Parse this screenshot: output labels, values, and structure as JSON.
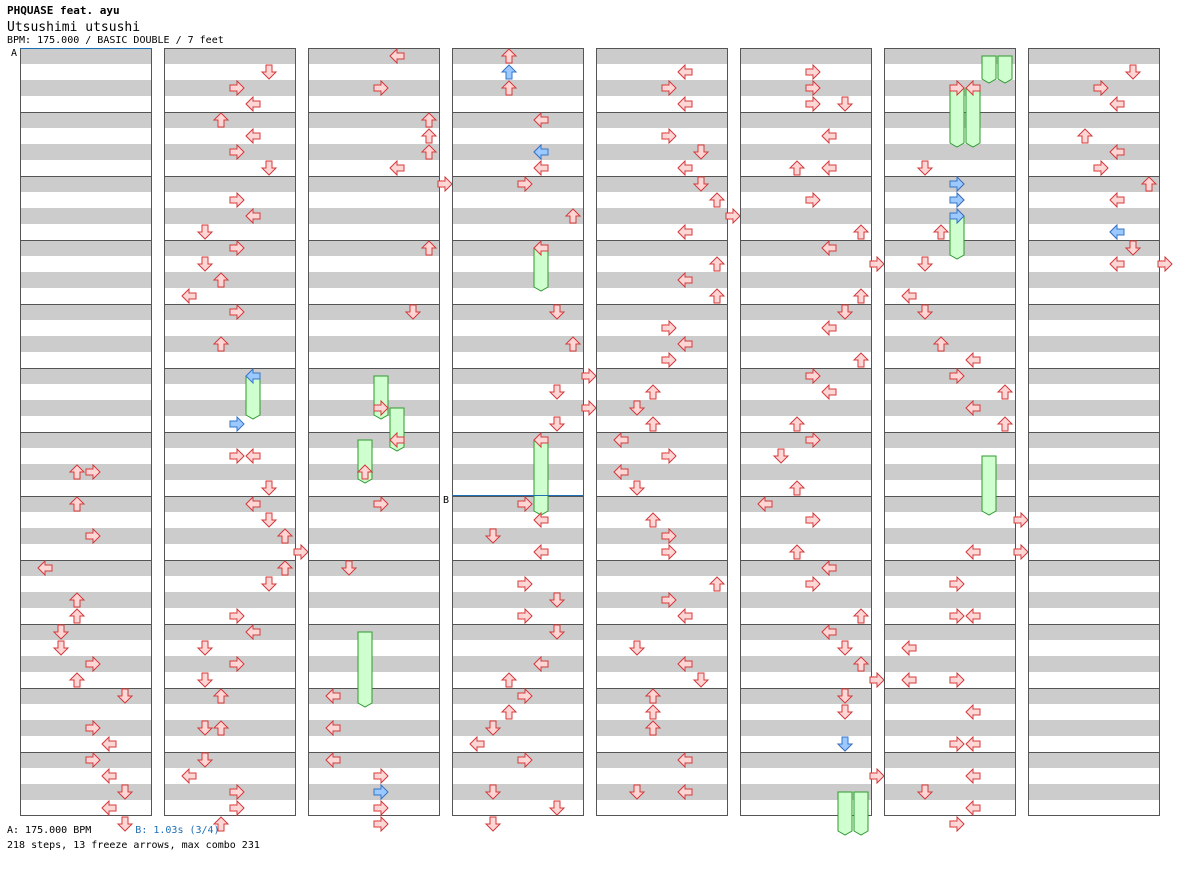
{
  "header": {
    "artist": "PHQUASE feat. ayu",
    "song": "Utsushimi utsushi",
    "info": "BPM: 175.000 / BASIC DOUBLE / 7 feet"
  },
  "markers": {
    "a_label": "A",
    "b_label": "B",
    "b_column": 3,
    "b_beat": 28,
    "a_color": "#1f6fb5",
    "b_color": "#1f6fb5"
  },
  "footer": {
    "legend_a": "A: 175.000 BPM",
    "legend_b": "B: 1.03s (3/4)",
    "stats": "218 steps, 13 freeze arrows, max combo 231"
  },
  "chart": {
    "columns": 8,
    "beats_per_column": 48,
    "columns_notes": [
      [
        [
          26,
          3
        ],
        [
          26,
          4
        ],
        [
          28,
          3
        ],
        [
          30,
          4
        ],
        [
          32,
          1
        ],
        [
          34,
          3
        ],
        [
          35,
          3
        ],
        [
          36,
          2
        ],
        [
          37,
          2
        ],
        [
          38,
          4
        ],
        [
          39,
          3
        ],
        [
          40,
          6
        ],
        [
          42,
          4
        ],
        [
          43,
          5
        ],
        [
          44,
          4
        ],
        [
          45,
          5
        ],
        [
          46,
          6
        ],
        [
          47,
          5
        ],
        [
          48,
          6
        ]
      ],
      [
        [
          1,
          6
        ],
        [
          2,
          4
        ],
        [
          3,
          5
        ],
        [
          4,
          3
        ],
        [
          5,
          5
        ],
        [
          6,
          4
        ],
        [
          7,
          6
        ],
        [
          9,
          4
        ],
        [
          10,
          5
        ],
        [
          11,
          2
        ],
        [
          12,
          4
        ],
        [
          13,
          2
        ],
        [
          14,
          3
        ],
        [
          15,
          1
        ],
        [
          16,
          4
        ],
        [
          18,
          3
        ],
        [
          25,
          4
        ],
        [
          25,
          5
        ],
        [
          27,
          6
        ],
        [
          28,
          5
        ],
        [
          29,
          6
        ],
        [
          30,
          7
        ],
        [
          31,
          8
        ],
        [
          32,
          7
        ],
        [
          33,
          6
        ],
        [
          35,
          4
        ],
        [
          36,
          5
        ],
        [
          37,
          2
        ],
        [
          38,
          4
        ],
        [
          39,
          2
        ],
        [
          40,
          3
        ],
        [
          42,
          2
        ],
        [
          42,
          3
        ],
        [
          44,
          2
        ],
        [
          45,
          1
        ],
        [
          46,
          4
        ],
        [
          47,
          4
        ],
        [
          48,
          3
        ]
      ],
      [
        [
          0,
          5
        ],
        [
          2,
          4
        ],
        [
          4,
          7
        ],
        [
          5,
          7
        ],
        [
          6,
          7
        ],
        [
          7,
          5
        ],
        [
          8,
          8
        ],
        [
          12,
          7
        ],
        [
          16,
          6
        ],
        [
          22,
          4
        ],
        [
          24,
          5
        ],
        [
          26,
          3
        ],
        [
          28,
          4
        ],
        [
          32,
          2
        ],
        [
          40,
          1
        ],
        [
          42,
          1
        ],
        [
          44,
          1
        ],
        [
          45,
          4
        ],
        [
          47,
          4
        ],
        [
          48,
          4
        ]
      ],
      [
        [
          0,
          3
        ],
        [
          2,
          3
        ],
        [
          4,
          5
        ],
        [
          6,
          5
        ],
        [
          7,
          5
        ],
        [
          8,
          4
        ],
        [
          10,
          7
        ],
        [
          12,
          5
        ],
        [
          16,
          6
        ],
        [
          18,
          7
        ],
        [
          20,
          8
        ],
        [
          21,
          6
        ],
        [
          22,
          8
        ],
        [
          23,
          6
        ],
        [
          24,
          5
        ],
        [
          28,
          4
        ],
        [
          29,
          5
        ],
        [
          30,
          2
        ],
        [
          31,
          5
        ],
        [
          33,
          4
        ],
        [
          34,
          6
        ],
        [
          35,
          4
        ],
        [
          36,
          6
        ],
        [
          38,
          5
        ],
        [
          39,
          3
        ],
        [
          40,
          4
        ],
        [
          41,
          3
        ],
        [
          42,
          2
        ],
        [
          43,
          1
        ],
        [
          44,
          4
        ],
        [
          46,
          2
        ],
        [
          47,
          6
        ],
        [
          48,
          2
        ]
      ],
      [
        [
          1,
          5
        ],
        [
          2,
          4
        ],
        [
          3,
          5
        ],
        [
          5,
          4
        ],
        [
          6,
          6
        ],
        [
          7,
          5
        ],
        [
          8,
          6
        ],
        [
          9,
          7
        ],
        [
          10,
          8
        ],
        [
          11,
          5
        ],
        [
          13,
          7
        ],
        [
          14,
          5
        ],
        [
          15,
          7
        ],
        [
          17,
          4
        ],
        [
          18,
          5
        ],
        [
          19,
          4
        ],
        [
          21,
          3
        ],
        [
          22,
          2
        ],
        [
          23,
          3
        ],
        [
          24,
          1
        ],
        [
          25,
          4
        ],
        [
          26,
          1
        ],
        [
          27,
          2
        ],
        [
          29,
          3
        ],
        [
          30,
          4
        ],
        [
          31,
          4
        ],
        [
          33,
          7
        ],
        [
          34,
          4
        ],
        [
          35,
          5
        ],
        [
          37,
          2
        ],
        [
          38,
          5
        ],
        [
          39,
          6
        ],
        [
          40,
          3
        ],
        [
          41,
          3
        ],
        [
          42,
          3
        ],
        [
          44,
          5
        ],
        [
          46,
          2
        ],
        [
          46,
          5
        ]
      ],
      [
        [
          1,
          4
        ],
        [
          2,
          4
        ],
        [
          3,
          4
        ],
        [
          3,
          6
        ],
        [
          5,
          5
        ],
        [
          7,
          3
        ],
        [
          7,
          5
        ],
        [
          9,
          4
        ],
        [
          11,
          7
        ],
        [
          12,
          5
        ],
        [
          13,
          8
        ],
        [
          15,
          7
        ],
        [
          16,
          6
        ],
        [
          17,
          5
        ],
        [
          19,
          7
        ],
        [
          20,
          4
        ],
        [
          21,
          5
        ],
        [
          23,
          3
        ],
        [
          24,
          4
        ],
        [
          25,
          2
        ],
        [
          27,
          3
        ],
        [
          28,
          1
        ],
        [
          29,
          4
        ],
        [
          31,
          3
        ],
        [
          32,
          5
        ],
        [
          33,
          4
        ],
        [
          35,
          7
        ],
        [
          36,
          5
        ],
        [
          37,
          6
        ],
        [
          38,
          7
        ],
        [
          39,
          8
        ],
        [
          40,
          6
        ],
        [
          41,
          6
        ],
        [
          43,
          6
        ],
        [
          45,
          8
        ]
      ],
      [
        [
          2,
          4
        ],
        [
          2,
          5
        ],
        [
          7,
          2
        ],
        [
          8,
          4
        ],
        [
          9,
          4
        ],
        [
          10,
          4
        ],
        [
          11,
          3
        ],
        [
          13,
          2
        ],
        [
          15,
          1
        ],
        [
          16,
          2
        ],
        [
          18,
          3
        ],
        [
          19,
          5
        ],
        [
          20,
          4
        ],
        [
          21,
          7
        ],
        [
          22,
          5
        ],
        [
          23,
          7
        ],
        [
          29,
          8
        ],
        [
          31,
          5
        ],
        [
          31,
          8
        ],
        [
          33,
          4
        ],
        [
          35,
          4
        ],
        [
          35,
          5
        ],
        [
          37,
          1
        ],
        [
          39,
          1
        ],
        [
          39,
          4
        ],
        [
          41,
          5
        ],
        [
          43,
          4
        ],
        [
          43,
          5
        ],
        [
          45,
          5
        ],
        [
          46,
          2
        ],
        [
          47,
          5
        ],
        [
          48,
          4
        ]
      ],
      [
        [
          1,
          6
        ],
        [
          2,
          4
        ],
        [
          3,
          5
        ],
        [
          5,
          3
        ],
        [
          6,
          5
        ],
        [
          7,
          4
        ],
        [
          8,
          7
        ],
        [
          9,
          5
        ],
        [
          11,
          5
        ],
        [
          12,
          6
        ],
        [
          13,
          5
        ],
        [
          13,
          8
        ]
      ]
    ],
    "columns_shock": [
      [],
      [
        [
          20,
          5
        ],
        [
          23,
          4
        ]
      ],
      [
        [
          46,
          4
        ]
      ],
      [
        [
          1,
          3
        ],
        [
          6,
          5
        ]
      ],
      [],
      [
        [
          43,
          6
        ]
      ],
      [
        [
          8,
          4
        ],
        [
          9,
          4
        ],
        [
          10,
          4
        ]
      ],
      [
        [
          11,
          5
        ]
      ]
    ],
    "columns_freeze": [
      [],
      [
        [
          20,
          22,
          5
        ]
      ],
      [
        [
          20,
          22,
          4
        ],
        [
          22,
          24,
          5
        ],
        [
          24,
          26,
          3
        ],
        [
          36,
          40,
          3
        ]
      ],
      [
        [
          12,
          14,
          5
        ],
        [
          24,
          28,
          5
        ]
      ],
      [],
      [
        [
          46,
          48,
          6
        ],
        [
          46,
          48,
          7
        ]
      ],
      [
        [
          0,
          1,
          6
        ],
        [
          0,
          1,
          7
        ],
        [
          2,
          5,
          4
        ],
        [
          2,
          5,
          5
        ],
        [
          10,
          12,
          4
        ],
        [
          25,
          28,
          6
        ]
      ],
      []
    ],
    "colors": {
      "arrow_fill": "#ffd6d6",
      "arrow_stroke": "#d43a3a",
      "shock_fill": "#9cc9ff",
      "shock_stroke": "#3575c9",
      "freeze_fill": "#cfffcf",
      "freeze_stroke": "#2f9a2f",
      "stripe": "#cccccc",
      "line": "#555555"
    }
  }
}
